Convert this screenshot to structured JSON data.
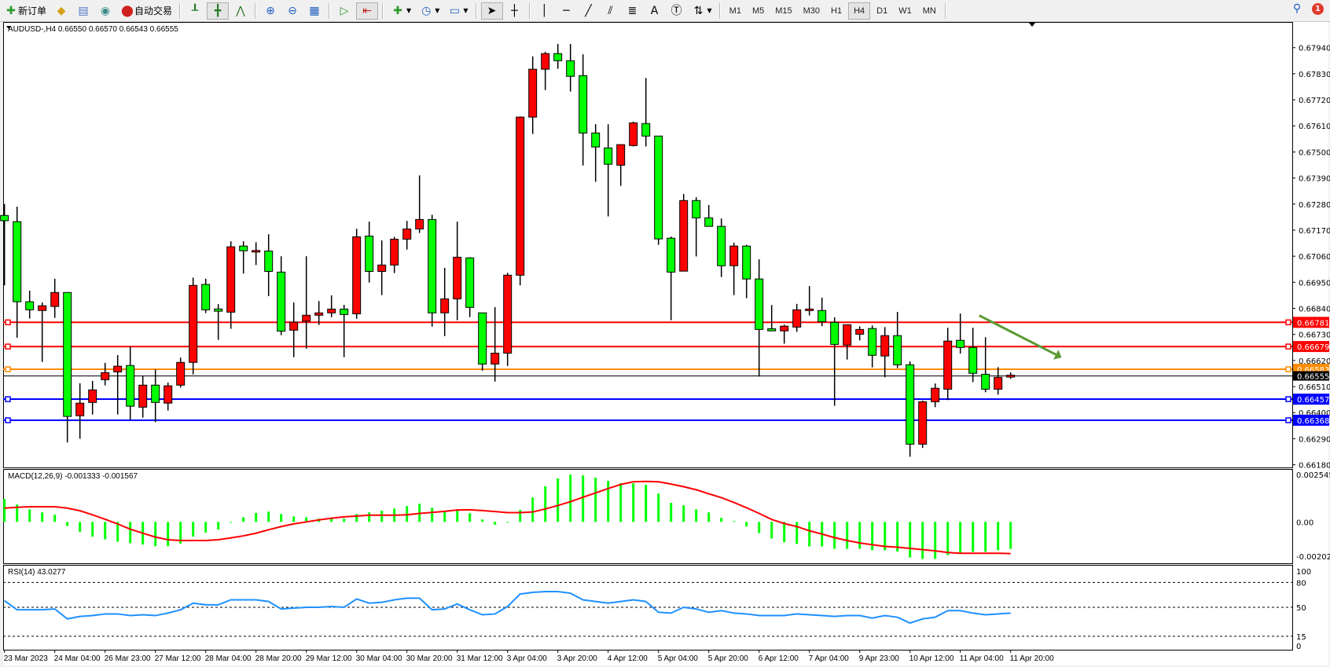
{
  "toolbar": {
    "new_order_label": "新订单",
    "auto_trading_label": "自动交易",
    "timeframes": [
      "M1",
      "M5",
      "M15",
      "M30",
      "H1",
      "H4",
      "D1",
      "W1",
      "MN"
    ],
    "active_timeframe": "H4",
    "notification_count": "1"
  },
  "chart": {
    "title": "AUDUSD-,H4  0.66550 0.66570 0.66543 0.66555",
    "bull_color": "#ff0000",
    "bear_color": "#00ff00",
    "price_axis_labels": [
      "0.67940",
      "0.67830",
      "0.67720",
      "0.67610",
      "0.67500",
      "0.67390",
      "0.67280",
      "0.67170",
      "0.67060",
      "0.66950",
      "0.66840",
      "0.66730",
      "0.66620",
      "0.66510",
      "0.66400",
      "0.66290",
      "0.66180"
    ],
    "current_price": "0.66555",
    "levels": [
      {
        "price": "0.66781",
        "color": "#ff0000"
      },
      {
        "price": "0.66679",
        "color": "#ff0000"
      },
      {
        "price": "0.66583",
        "color": "#ff8c00"
      },
      {
        "price": "0.66457",
        "color": "#0000ff"
      },
      {
        "price": "0.66368",
        "color": "#0000ff"
      }
    ],
    "trend_arrow": {
      "color": "#5a9a32",
      "direction": "down-right",
      "from": [
        77.5,
        0.6681
      ],
      "to": [
        83.6,
        0.66645
      ]
    },
    "time_labels": [
      "23 Mar 2023",
      "24 Mar 04:00",
      "26 Mar 23:00",
      "27 Mar 12:00",
      "28 Mar 04:00",
      "28 Mar 20:00",
      "29 Mar 12:00",
      "30 Mar 04:00",
      "30 Mar 20:00",
      "31 Mar 12:00",
      "3 Apr 04:00",
      "3 Apr 20:00",
      "4 Apr 12:00",
      "5 Apr 04:00",
      "5 Apr 20:00",
      "6 Apr 12:00",
      "7 Apr 04:00",
      "9 Apr 23:00",
      "10 Apr 12:00",
      "11 Apr 04:00",
      "11 Apr 20:00"
    ]
  },
  "chart_data": [
    {
      "type": "candlestick",
      "title": "AUDUSD-,H4",
      "ylim": [
        0.6616,
        0.6804
      ],
      "ohlc": [
        [
          0.67232,
          0.6728,
          0.66937,
          0.6721
        ],
        [
          0.67206,
          0.67269,
          0.66716,
          0.66868
        ],
        [
          0.66868,
          0.66915,
          0.66797,
          0.66834
        ],
        [
          0.66831,
          0.66865,
          0.66614,
          0.66851
        ],
        [
          0.66848,
          0.66965,
          0.668,
          0.66907
        ],
        [
          0.66907,
          0.66907,
          0.66274,
          0.66384
        ],
        [
          0.66387,
          0.66524,
          0.6629,
          0.6644
        ],
        [
          0.66443,
          0.66534,
          0.66392,
          0.66496
        ],
        [
          0.66539,
          0.6661,
          0.66515,
          0.66569
        ],
        [
          0.66572,
          0.66643,
          0.66392,
          0.66596
        ],
        [
          0.66599,
          0.66679,
          0.6637,
          0.66427
        ],
        [
          0.66423,
          0.66556,
          0.66379,
          0.66516
        ],
        [
          0.66516,
          0.66582,
          0.6636,
          0.66443
        ],
        [
          0.6644,
          0.66527,
          0.66409,
          0.66513
        ],
        [
          0.66516,
          0.66632,
          0.66506,
          0.66612
        ],
        [
          0.66612,
          0.6697,
          0.66561,
          0.66937
        ],
        [
          0.66941,
          0.66965,
          0.6682,
          0.66834
        ],
        [
          0.66834,
          0.66858,
          0.66707,
          0.66828
        ],
        [
          0.66824,
          0.67123,
          0.66754,
          0.671
        ],
        [
          0.67103,
          0.67123,
          0.66987,
          0.67083
        ],
        [
          0.67081,
          0.67119,
          0.67023,
          0.67081
        ],
        [
          0.67082,
          0.67153,
          0.66892,
          0.66996
        ],
        [
          0.66993,
          0.6706,
          0.66727,
          0.66744
        ],
        [
          0.66748,
          0.66865,
          0.66634,
          0.66782
        ],
        [
          0.66786,
          0.6706,
          0.6667,
          0.66811
        ],
        [
          0.66811,
          0.66871,
          0.6677,
          0.66821
        ],
        [
          0.66821,
          0.66895,
          0.66803,
          0.66837
        ],
        [
          0.66837,
          0.66855,
          0.66634,
          0.66814
        ],
        [
          0.66817,
          0.67176,
          0.66796,
          0.67142
        ],
        [
          0.67145,
          0.67206,
          0.66949,
          0.66996
        ],
        [
          0.66996,
          0.67127,
          0.66896,
          0.67023
        ],
        [
          0.67023,
          0.67142,
          0.66989,
          0.67132
        ],
        [
          0.67132,
          0.67209,
          0.67088,
          0.67175
        ],
        [
          0.67175,
          0.67401,
          0.67158,
          0.67215
        ],
        [
          0.67215,
          0.67235,
          0.66763,
          0.66821
        ],
        [
          0.66821,
          0.67011,
          0.66723,
          0.6688
        ],
        [
          0.6688,
          0.67206,
          0.6679,
          0.67056
        ],
        [
          0.67053,
          0.67056,
          0.66803,
          0.66844
        ],
        [
          0.66821,
          0.66821,
          0.66577,
          0.66605
        ],
        [
          0.66605,
          0.66845,
          0.66531,
          0.66651
        ],
        [
          0.66651,
          0.6699,
          0.66597,
          0.6698
        ],
        [
          0.6698,
          0.6765,
          0.66937,
          0.67647
        ],
        [
          0.67647,
          0.67903,
          0.67576,
          0.67849
        ],
        [
          0.67849,
          0.67923,
          0.67761,
          0.67915
        ],
        [
          0.67915,
          0.67956,
          0.67851,
          0.67885
        ],
        [
          0.67885,
          0.67956,
          0.67755,
          0.67819
        ],
        [
          0.67822,
          0.67912,
          0.67443,
          0.6758
        ],
        [
          0.6758,
          0.67617,
          0.67374,
          0.67521
        ],
        [
          0.67517,
          0.67617,
          0.67228,
          0.67448
        ],
        [
          0.67444,
          0.67531,
          0.67357,
          0.67531
        ],
        [
          0.67527,
          0.67628,
          0.67523,
          0.67623
        ],
        [
          0.6762,
          0.67812,
          0.67523,
          0.67567
        ],
        [
          0.67567,
          0.67567,
          0.67108,
          0.67133
        ],
        [
          0.67136,
          0.67143,
          0.6679,
          0.66993
        ],
        [
          0.66997,
          0.67323,
          0.66997,
          0.67295
        ],
        [
          0.67295,
          0.67309,
          0.67059,
          0.67222
        ],
        [
          0.67222,
          0.67276,
          0.67186,
          0.67186
        ],
        [
          0.67186,
          0.67219,
          0.66972,
          0.6702
        ],
        [
          0.6702,
          0.67117,
          0.66896,
          0.67103
        ],
        [
          0.67103,
          0.67108,
          0.66883,
          0.66964
        ],
        [
          0.66964,
          0.67047,
          0.66552,
          0.66751
        ],
        [
          0.66754,
          0.66854,
          0.66745,
          0.66745
        ],
        [
          0.66745,
          0.66771,
          0.66691,
          0.66765
        ],
        [
          0.66761,
          0.66859,
          0.66741,
          0.66834
        ],
        [
          0.66834,
          0.66934,
          0.6681,
          0.66834
        ],
        [
          0.66831,
          0.66885,
          0.66765,
          0.66784
        ],
        [
          0.66781,
          0.66802,
          0.66429,
          0.66688
        ],
        [
          0.66685,
          0.66771,
          0.66624,
          0.66771
        ],
        [
          0.66731,
          0.66764,
          0.66705,
          0.66751
        ],
        [
          0.66755,
          0.66768,
          0.66591,
          0.66642
        ],
        [
          0.66639,
          0.66761,
          0.66549,
          0.66725
        ],
        [
          0.66725,
          0.66825,
          0.66588,
          0.66602
        ],
        [
          0.66602,
          0.66616,
          0.66214,
          0.66267
        ],
        [
          0.66267,
          0.66451,
          0.66251,
          0.66446
        ],
        [
          0.66446,
          0.66523,
          0.66423,
          0.66503
        ],
        [
          0.66499,
          0.66758,
          0.66453,
          0.66702
        ],
        [
          0.66705,
          0.66818,
          0.66649,
          0.66675
        ],
        [
          0.66675,
          0.66758,
          0.66529,
          0.66566
        ],
        [
          0.66562,
          0.66718,
          0.66486,
          0.66499
        ],
        [
          0.66499,
          0.66592,
          0.66476,
          0.66549
        ],
        [
          0.6655,
          0.6657,
          0.66543,
          0.66555
        ]
      ]
    },
    {
      "type": "bar+line",
      "title": "MACD(12,26,9) -0.001333 -0.001567",
      "axis_labels": [
        "0.002545",
        "0.00",
        "-0.002026"
      ],
      "ylim": [
        -0.00205,
        0.00263
      ],
      "histogram_color": "#00ff00",
      "signal_color": "#ff0000",
      "histogram": [
        0.00113,
        0.00086,
        0.00062,
        0.00047,
        0.00035,
        -0.0002,
        -0.00049,
        -0.00073,
        -0.00086,
        -0.00098,
        -0.00105,
        -0.00112,
        -0.0012,
        -0.0012,
        -0.00108,
        -0.00073,
        -0.00053,
        -0.00038,
        -3e-05,
        0.00023,
        0.00044,
        0.00051,
        0.00039,
        0.00027,
        0.00023,
        0.00016,
        0.0002,
        0.00016,
        0.00039,
        0.00047,
        0.00055,
        0.00066,
        0.00078,
        0.0009,
        0.0007,
        0.00055,
        0.00059,
        0.00043,
        0.00012,
        -0.00014,
        -4e-05,
        0.00059,
        0.00121,
        0.00176,
        0.00215,
        0.00234,
        0.0023,
        0.00218,
        0.00203,
        0.00191,
        0.00191,
        0.00183,
        0.0014,
        0.00094,
        0.00082,
        0.00062,
        0.00047,
        0.0002,
        4e-05,
        -0.00023,
        -0.00055,
        -0.00082,
        -0.00101,
        -0.00109,
        -0.00121,
        -0.00121,
        -0.00133,
        -0.00133,
        -0.00133,
        -0.0014,
        -0.0014,
        -0.00147,
        -0.00176,
        -0.00183,
        -0.00183,
        -0.00164,
        -0.00156,
        -0.00148,
        -0.00148,
        -0.0014,
        -0.001333
      ],
      "signal": [
        0.00068,
        0.00072,
        0.00075,
        0.00075,
        0.00075,
        0.00068,
        0.00055,
        0.00035,
        0.00013,
        -0.0001,
        -0.00036,
        -0.00056,
        -0.00075,
        -0.00088,
        -0.00092,
        -0.00092,
        -0.00092,
        -0.00088,
        -0.00079,
        -0.00069,
        -0.00056,
        -0.00039,
        -0.00023,
        -0.0001,
        0.0,
        0.0001,
        0.00018,
        0.00025,
        0.00029,
        0.00033,
        0.00033,
        0.00033,
        0.00035,
        0.00042,
        0.00047,
        0.00052,
        0.00059,
        0.0006,
        0.00056,
        0.00051,
        0.00046,
        0.00046,
        0.00049,
        0.00064,
        0.00081,
        0.001,
        0.00122,
        0.00143,
        0.00165,
        0.00185,
        0.00198,
        0.002,
        0.00198,
        0.00187,
        0.00174,
        0.00159,
        0.00139,
        0.0012,
        0.00096,
        0.0007,
        0.00042,
        0.00012,
        -8e-05,
        -0.00023,
        -0.00044,
        -0.0006,
        -0.00078,
        -0.00092,
        -0.00104,
        -0.00113,
        -0.00121,
        -0.00125,
        -0.00131,
        -0.00137,
        -0.00143,
        -0.00151,
        -0.00155,
        -0.00155,
        -0.00155,
        -0.00155,
        -0.001567
      ]
    },
    {
      "type": "line",
      "title": "RSI(14) 43.0277",
      "axis_labels": [
        "100",
        "80",
        "50",
        "15",
        "0"
      ],
      "levels": [
        80,
        50,
        15
      ],
      "ylim": [
        0,
        100
      ],
      "color": "#1e90ff",
      "values": [
        58,
        47,
        47,
        47,
        48,
        36,
        39,
        40,
        42,
        42,
        40,
        41,
        40,
        43,
        47,
        55,
        53,
        53,
        59,
        59,
        59,
        57,
        48,
        49,
        50,
        50,
        51,
        50,
        60,
        55,
        56,
        59,
        61,
        61,
        47,
        48,
        54,
        47,
        41,
        42,
        51,
        66,
        68,
        69,
        69,
        67,
        59,
        57,
        55,
        57,
        59,
        57,
        44,
        43,
        50,
        48,
        44,
        46,
        43,
        42,
        40,
        40,
        40,
        42,
        41,
        40,
        39,
        40,
        40,
        37,
        40,
        38,
        31,
        36,
        38,
        46,
        46,
        43,
        41,
        42,
        43.0277
      ]
    }
  ]
}
